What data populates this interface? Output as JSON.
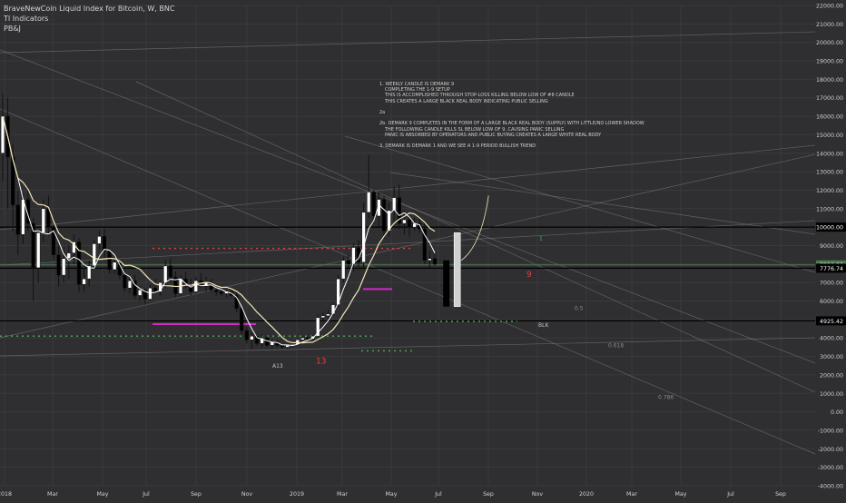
{
  "legend": {
    "title": "BraveNewCoin Liquid Index for Bitcoin, W, BNC",
    "indicator_1": "TI Indicators",
    "indicator_2": "PB&J"
  },
  "note_lines": [
    "1. WEEKLY CANDLE IS DEMARK 9",
    "COMPLETING THE 1-9 SETUP",
    "THIS IS ACCOMPLISHED THROUGH STOP-LOSS KILLING BELOW LOW OF #8 CANDLE",
    "THIS CREATES A LARGE BLACK REAL BODY INDICATING PUBLIC SELLING",
    "",
    "2a",
    "",
    "2b. DEMARK 9 COMPLETES IN THE FORM OF A LARGE BLACK REAL BODY (SUPPLY) WITH LITTLE/NO LOWER SHADOW",
    "THE FOLLOWING CANDLE KILLS SL BELOW LOW OF 9, CAUSING PANIC SELLING",
    "PANIC IS ABSORBED BY OPERATORS AND PUBLIC BUYING CREATES A LARGE WHITE REAL BODY",
    "",
    "3. DEMARK IS DEMARK 1 AND WE SEE A 1-9 PERIOD BULLISH TREND"
  ],
  "colors": {
    "background": "#2f2f31",
    "bull": "#ffffff",
    "bear": "#000000",
    "ma_fast": "#ffffff",
    "ma_slow": "#f3e6b8",
    "demark_red": "#e04040",
    "demark_green": "#4caf50",
    "magenta": "#d428c8"
  },
  "chart_data": {
    "type": "candlestick",
    "title": "BraveNewCoin Liquid Index for Bitcoin, W, BNC",
    "ylim": [
      -4000,
      22000
    ],
    "y_ticks": [
      "22000.00",
      "21000.00",
      "20000.00",
      "19000.00",
      "18000.00",
      "17000.00",
      "16000.00",
      "15000.00",
      "14000.00",
      "13000.00",
      "12000.00",
      "11000.00",
      "10000.00",
      "9000.00",
      "8000.00",
      "7000.00",
      "6000.00",
      "5000.00",
      "4000.00",
      "3000.00",
      "2000.00",
      "1000.00",
      "0.00",
      "-1000.00",
      "-2000.00",
      "-3000.00",
      "-4000.00"
    ],
    "x_ticks": [
      "2018",
      "Mar",
      "May",
      "Jul",
      "Sep",
      "Nov",
      "2019",
      "Mar",
      "May",
      "Jul",
      "Sep",
      "Nov",
      "2020",
      "Mar",
      "May",
      "Jul",
      "Sep"
    ],
    "price_labels": [
      {
        "value": 10000,
        "label": "10000.00",
        "color": "#000000"
      },
      {
        "value": 7956.83,
        "label": "7956.83",
        "color": "#4a7a52"
      },
      {
        "value": 7776.74,
        "label": "7776.74",
        "color": "#000000"
      },
      {
        "value": 4925.42,
        "label": "4925.42",
        "color": "#000000"
      }
    ],
    "horizontal_levels": [
      10000,
      7776.74,
      4925.42
    ],
    "fib_labels": [
      "0.5",
      "0.618",
      "0.786"
    ],
    "markers": [
      "A13",
      "13",
      "9",
      "1",
      "BLK"
    ],
    "ohlc": [
      [
        14000,
        17200,
        12500,
        16000
      ],
      [
        16000,
        17000,
        11000,
        13800
      ],
      [
        13800,
        14500,
        9800,
        11200
      ],
      [
        11200,
        12000,
        8500,
        9600
      ],
      [
        9600,
        11800,
        9100,
        11500
      ],
      [
        11500,
        12200,
        9800,
        10200
      ],
      [
        10200,
        10500,
        6000,
        7800
      ],
      [
        7800,
        9800,
        7000,
        9700
      ],
      [
        9700,
        11500,
        9200,
        11000
      ],
      [
        11000,
        11700,
        9500,
        10000
      ],
      [
        10000,
        10100,
        8200,
        8500
      ],
      [
        8500,
        9000,
        6800,
        7400
      ],
      [
        7400,
        8900,
        7000,
        8300
      ],
      [
        8300,
        9000,
        7200,
        8600
      ],
      [
        8600,
        9600,
        8000,
        9200
      ],
      [
        9200,
        9400,
        6500,
        6900
      ],
      [
        6900,
        7800,
        6500,
        7200
      ],
      [
        7200,
        8200,
        6800,
        7900
      ],
      [
        7900,
        9300,
        7700,
        9100
      ],
      [
        9100,
        9800,
        8800,
        9500
      ],
      [
        9500,
        9900,
        8300,
        8700
      ],
      [
        8700,
        8800,
        7500,
        7700
      ],
      [
        7700,
        8400,
        7500,
        8100
      ],
      [
        8100,
        8200,
        7200,
        7400
      ],
      [
        7400,
        7700,
        6500,
        6700
      ],
      [
        6700,
        7300,
        6400,
        7100
      ],
      [
        7100,
        7400,
        6100,
        6300
      ],
      [
        6300,
        6800,
        6000,
        6600
      ],
      [
        6600,
        6700,
        5800,
        6100
      ],
      [
        6100,
        6900,
        6000,
        6700
      ],
      [
        6700,
        7200,
        6400,
        6500
      ],
      [
        6500,
        7100,
        6300,
        7000
      ],
      [
        7000,
        8200,
        6700,
        7900
      ],
      [
        7900,
        8300,
        7000,
        7300
      ],
      [
        7300,
        7600,
        6200,
        6400
      ],
      [
        6400,
        7400,
        6300,
        7200
      ],
      [
        7200,
        7600,
        6700,
        6900
      ],
      [
        6900,
        7200,
        6300,
        6500
      ],
      [
        6500,
        7300,
        6400,
        7100
      ],
      [
        7100,
        7500,
        6700,
        6800
      ],
      [
        6800,
        7300,
        6500,
        7000
      ],
      [
        7000,
        7200,
        6500,
        6600
      ],
      [
        6600,
        6800,
        6300,
        6500
      ],
      [
        6500,
        6700,
        6300,
        6400
      ],
      [
        6400,
        6600,
        6200,
        6500
      ],
      [
        6500,
        6600,
        6200,
        6300
      ],
      [
        6300,
        6500,
        5400,
        5600
      ],
      [
        5600,
        5700,
        4200,
        4400
      ],
      [
        4400,
        4600,
        3700,
        3900
      ],
      [
        3900,
        4300,
        3400,
        4100
      ],
      [
        4100,
        4200,
        3600,
        3700
      ],
      [
        3700,
        4200,
        3500,
        4000
      ],
      [
        4000,
        4100,
        3500,
        3600
      ],
      [
        3600,
        3900,
        3400,
        3800
      ],
      [
        3800,
        3900,
        3500,
        3600
      ],
      [
        3600,
        3700,
        3400,
        3500
      ],
      [
        3500,
        3700,
        3400,
        3600
      ],
      [
        3600,
        3700,
        3500,
        3650
      ],
      [
        3650,
        4000,
        3600,
        3900
      ],
      [
        3900,
        4100,
        3800,
        4000
      ],
      [
        4000,
        4100,
        3850,
        3950
      ],
      [
        3950,
        4150,
        3900,
        4100
      ],
      [
        4100,
        5300,
        4000,
        5100
      ],
      [
        5100,
        5400,
        4900,
        5200
      ],
      [
        5200,
        5500,
        5000,
        5300
      ],
      [
        5300,
        5900,
        5200,
        5800
      ],
      [
        5800,
        7400,
        5700,
        7200
      ],
      [
        7200,
        8400,
        7000,
        8200
      ],
      [
        8200,
        8500,
        7800,
        8000
      ],
      [
        8000,
        9100,
        7600,
        8900
      ],
      [
        8900,
        9300,
        7700,
        8100
      ],
      [
        8100,
        11300,
        7700,
        10800
      ],
      [
        10800,
        13900,
        10500,
        11900
      ],
      [
        11900,
        12000,
        10200,
        10600
      ],
      [
        10600,
        11900,
        10000,
        11500
      ],
      [
        11500,
        11700,
        9400,
        9800
      ],
      [
        9800,
        11300,
        9500,
        10900
      ],
      [
        10900,
        12200,
        10300,
        11600
      ],
      [
        11600,
        12300,
        9900,
        10200
      ],
      [
        10200,
        10900,
        9600,
        10400
      ],
      [
        10400,
        10600,
        9500,
        10000
      ],
      [
        10000,
        10500,
        9800,
        10200
      ],
      [
        10200,
        10500,
        9700,
        9900
      ],
      [
        9900,
        10200,
        8000,
        8200
      ],
      [
        8200,
        8700,
        7800,
        8300
      ],
      [
        8300,
        8500,
        7900,
        8000
      ]
    ],
    "demark_bars": [
      [
        8200,
        5700
      ],
      [
        5700,
        9700
      ]
    ]
  }
}
